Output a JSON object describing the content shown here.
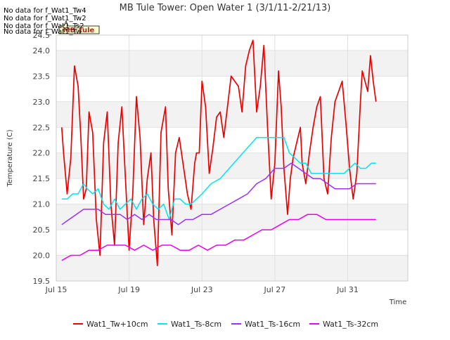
{
  "chart_data": {
    "type": "line",
    "title": "MB Tule Tower: Open Water 1 (3/1/11-2/21/13)",
    "xlabel": "Time",
    "ylabel": "Temperature (C)",
    "xlim": [
      0,
      19.3
    ],
    "ylim": [
      19.5,
      24.3
    ],
    "x_unit": "days since Jul 15",
    "x_ticks": [
      {
        "label": "Jul 15",
        "value": 0
      },
      {
        "label": "Jul 19",
        "value": 4
      },
      {
        "label": "Jul 23",
        "value": 8
      },
      {
        "label": "Jul 27",
        "value": 12
      },
      {
        "label": "Jul 31",
        "value": 16
      }
    ],
    "y_ticks": [
      19.5,
      20.0,
      20.5,
      21.0,
      21.5,
      22.0,
      22.5,
      23.0,
      23.5,
      24.0,
      24.5
    ],
    "y_tick_labels": [
      "19.5",
      "20.0",
      "20.5",
      "21.0",
      "21.5",
      "22.0",
      "22.5",
      "23.0",
      "23.5",
      "24.0",
      "24.5"
    ],
    "no_data_messages": [
      "No data for f_Wat1_Tw4",
      "No data for f_Wat1_Tw2",
      "No data for f_Wat1_Ts2",
      "No data for f_Wat1_Tw"
    ],
    "box_label": "MB_tule",
    "series": [
      {
        "name": "Wat1_Tw+10cm",
        "color": "#ee0000",
        "x": [
          0.3,
          0.4,
          0.6,
          0.8,
          1.0,
          1.2,
          1.35,
          1.5,
          1.65,
          1.8,
          2.0,
          2.2,
          2.4,
          2.6,
          2.8,
          3.0,
          3.2,
          3.4,
          3.6,
          3.8,
          4.0,
          4.2,
          4.4,
          4.6,
          4.8,
          5.0,
          5.2,
          5.35,
          5.55,
          5.75,
          6.0,
          6.15,
          6.35,
          6.55,
          6.75,
          7.0,
          7.2,
          7.4,
          7.6,
          7.7,
          7.85,
          8.0,
          8.2,
          8.4,
          8.6,
          8.8,
          9.0,
          9.2,
          9.4,
          9.6,
          9.8,
          10.0,
          10.2,
          10.4,
          10.6,
          10.8,
          11.0,
          11.2,
          11.4,
          11.6,
          11.8,
          12.0,
          12.2,
          12.35,
          12.5,
          12.7,
          12.85,
          13.0,
          13.2,
          13.4,
          13.5,
          13.7,
          13.9,
          14.1,
          14.3,
          14.5,
          14.7,
          14.9,
          15.1,
          15.3,
          15.5,
          15.7,
          15.9,
          16.1,
          16.3,
          16.5,
          16.7,
          16.8,
          16.95,
          17.1,
          17.25,
          17.4,
          17.55
        ],
        "values": [
          22.5,
          22.0,
          21.2,
          21.9,
          23.7,
          23.3,
          22.3,
          21.1,
          21.3,
          22.8,
          22.4,
          20.7,
          20.0,
          22.2,
          22.8,
          21.0,
          20.2,
          22.2,
          22.9,
          21.5,
          20.1,
          21.2,
          23.1,
          22.3,
          20.6,
          21.5,
          22.0,
          20.7,
          19.8,
          22.4,
          22.9,
          21.3,
          20.4,
          22.0,
          22.3,
          21.7,
          21.2,
          20.9,
          21.8,
          22.0,
          22.0,
          23.4,
          22.9,
          21.6,
          22.1,
          22.7,
          22.8,
          22.3,
          22.9,
          23.5,
          23.4,
          23.3,
          22.8,
          23.7,
          24.0,
          24.2,
          22.8,
          23.3,
          24.1,
          22.5,
          21.1,
          21.8,
          23.6,
          22.9,
          21.7,
          20.8,
          21.5,
          21.9,
          22.2,
          22.5,
          21.8,
          21.4,
          22.0,
          22.5,
          22.9,
          23.1,
          21.5,
          21.2,
          22.3,
          23.0,
          23.2,
          23.4,
          22.6,
          21.7,
          21.1,
          21.6,
          23.0,
          23.6,
          23.4,
          23.2,
          23.9,
          23.4,
          23.0
        ]
      },
      {
        "name": "Wat1_Ts-8cm",
        "color": "#00e5ee",
        "x": [
          0.3,
          0.6,
          0.9,
          1.2,
          1.5,
          1.7,
          2.0,
          2.3,
          2.6,
          2.9,
          3.2,
          3.5,
          3.8,
          4.1,
          4.4,
          4.7,
          5.0,
          5.3,
          5.6,
          5.9,
          6.2,
          6.5,
          6.8,
          7.1,
          7.4,
          7.7,
          8.0,
          8.5,
          9.0,
          9.5,
          10.0,
          10.5,
          11.0,
          11.5,
          11.9,
          12.2,
          12.5,
          12.8,
          13.1,
          13.4,
          13.7,
          14.0,
          14.3,
          14.6,
          14.9,
          15.2,
          15.5,
          15.8,
          16.1,
          16.4,
          16.7,
          17.0,
          17.3,
          17.55
        ],
        "values": [
          21.1,
          21.1,
          21.2,
          21.2,
          21.4,
          21.3,
          21.2,
          21.3,
          21.0,
          20.9,
          21.1,
          20.9,
          21.0,
          21.1,
          20.9,
          21.1,
          21.2,
          21.0,
          20.9,
          21.0,
          20.7,
          21.1,
          21.1,
          21.0,
          21.0,
          21.1,
          21.2,
          21.4,
          21.5,
          21.7,
          21.9,
          22.1,
          22.3,
          22.3,
          22.3,
          22.3,
          22.3,
          22.0,
          21.9,
          21.8,
          21.8,
          21.6,
          21.6,
          21.6,
          21.6,
          21.6,
          21.6,
          21.6,
          21.7,
          21.8,
          21.7,
          21.7,
          21.8,
          21.8
        ]
      },
      {
        "name": "Wat1_Ts-16cm",
        "color": "#9b30ff",
        "x": [
          0.3,
          0.7,
          1.1,
          1.5,
          1.9,
          2.3,
          2.7,
          3.1,
          3.5,
          3.9,
          4.3,
          4.7,
          5.1,
          5.5,
          5.9,
          6.3,
          6.7,
          7.1,
          7.5,
          8.0,
          8.5,
          9.0,
          9.5,
          10.0,
          10.5,
          11.0,
          11.5,
          12.0,
          12.5,
          12.9,
          13.3,
          13.7,
          14.1,
          14.5,
          14.9,
          15.3,
          15.7,
          16.1,
          16.5,
          16.9,
          17.2,
          17.55
        ],
        "values": [
          20.6,
          20.7,
          20.8,
          20.9,
          20.9,
          20.9,
          20.8,
          20.8,
          20.8,
          20.7,
          20.8,
          20.7,
          20.8,
          20.7,
          20.7,
          20.7,
          20.6,
          20.7,
          20.7,
          20.8,
          20.8,
          20.9,
          21.0,
          21.1,
          21.2,
          21.4,
          21.5,
          21.7,
          21.7,
          21.8,
          21.7,
          21.6,
          21.5,
          21.5,
          21.4,
          21.3,
          21.3,
          21.3,
          21.4,
          21.4,
          21.4,
          21.4
        ]
      },
      {
        "name": "Wat1_Ts-32cm",
        "color": "#ee00ee",
        "x": [
          0.3,
          0.8,
          1.3,
          1.8,
          2.3,
          2.8,
          3.3,
          3.8,
          4.3,
          4.8,
          5.3,
          5.8,
          6.3,
          6.8,
          7.3,
          7.8,
          8.3,
          8.8,
          9.3,
          9.8,
          10.3,
          10.8,
          11.3,
          11.8,
          12.3,
          12.8,
          13.3,
          13.8,
          14.3,
          14.8,
          15.3,
          15.8,
          16.3,
          16.8,
          17.2,
          17.55
        ],
        "values": [
          19.9,
          20.0,
          20.0,
          20.1,
          20.1,
          20.2,
          20.2,
          20.2,
          20.1,
          20.2,
          20.1,
          20.2,
          20.2,
          20.1,
          20.1,
          20.2,
          20.1,
          20.2,
          20.2,
          20.3,
          20.3,
          20.4,
          20.5,
          20.5,
          20.6,
          20.7,
          20.7,
          20.8,
          20.8,
          20.7,
          20.7,
          20.7,
          20.7,
          20.7,
          20.7,
          20.7
        ]
      }
    ]
  }
}
